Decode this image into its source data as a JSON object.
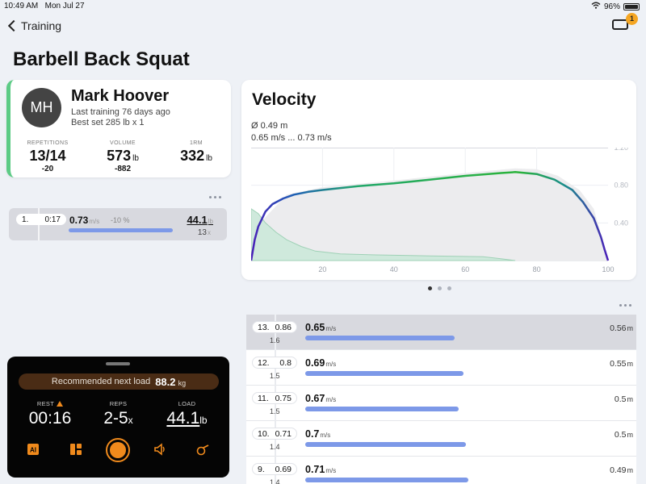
{
  "status": {
    "time": "10:49 AM",
    "date": "Mon Jul 27",
    "battery": "96%"
  },
  "nav": {
    "back_label": "Training",
    "badge_count": "1"
  },
  "page": {
    "title": "Barbell Back Squat"
  },
  "athlete": {
    "initials": "MH",
    "name": "Mark Hoover",
    "last_training": "Last training 76 days ago",
    "best_set": "Best set 285 lb x 1",
    "stats": [
      {
        "label": "REPETITIONS",
        "value": "13/14",
        "unit": "",
        "sub": "-20"
      },
      {
        "label": "VOLUME",
        "value": "573",
        "unit": "lb",
        "sub": "-882"
      },
      {
        "label": "1RM",
        "value": "332",
        "unit": "lb",
        "sub": ""
      }
    ]
  },
  "set": {
    "number": "1.",
    "time": "0:17",
    "velocity": "0.73",
    "velocity_unit": "m/s",
    "change": "-10 %",
    "load": "44.1",
    "load_unit": "lb",
    "reps": "13",
    "reps_unit": "x",
    "bar_fraction": 0.86
  },
  "velocity_card": {
    "title": "Velocity",
    "avg_distance": "Ø 0.49 m",
    "range": "0.65 m/s ... 0.73 m/s"
  },
  "chart_data": {
    "type": "line",
    "x_ticks": [
      "20",
      "40",
      "60",
      "80",
      "100"
    ],
    "y_ticks": [
      "1.20",
      "0.80",
      "0.40"
    ],
    "xlim": [
      0,
      100
    ],
    "ylim": [
      0,
      1.2
    ],
    "grid": true,
    "series": [
      {
        "kind": "velocity-line",
        "x": [
          0,
          1,
          2,
          4,
          6,
          9,
          12,
          16,
          20,
          30,
          40,
          50,
          60,
          70,
          74,
          80,
          85,
          90,
          93,
          96,
          98,
          99,
          100
        ],
        "y": [
          0,
          0.22,
          0.36,
          0.52,
          0.6,
          0.66,
          0.7,
          0.73,
          0.75,
          0.79,
          0.82,
          0.86,
          0.9,
          0.93,
          0.94,
          0.92,
          0.86,
          0.75,
          0.62,
          0.45,
          0.25,
          0.12,
          0
        ]
      },
      {
        "kind": "velocity-band-upper",
        "x": [
          0,
          10,
          20,
          40,
          60,
          74,
          80,
          86,
          92,
          96,
          100
        ],
        "y": [
          0.3,
          0.7,
          0.78,
          0.85,
          0.93,
          0.98,
          0.97,
          0.9,
          0.75,
          0.55,
          0
        ]
      },
      {
        "kind": "force-area",
        "x": [
          0,
          2,
          4,
          7,
          10,
          14,
          18,
          25,
          35,
          50,
          65,
          70,
          74
        ],
        "y": [
          0.55,
          0.5,
          0.4,
          0.3,
          0.22,
          0.15,
          0.1,
          0.07,
          0.06,
          0.05,
          0.04,
          0.02,
          0
        ]
      }
    ]
  },
  "reps": [
    {
      "number": "13.",
      "velocity": "0.86",
      "duration": "1.6",
      "rep_velocity": "0.65",
      "unit": "m/s",
      "distance": "0.56",
      "dist_unit": "m",
      "bar_fraction": 0.66,
      "selected": true
    },
    {
      "number": "12.",
      "velocity": "0.8",
      "duration": "1.5",
      "rep_velocity": "0.69",
      "unit": "m/s",
      "distance": "0.55",
      "dist_unit": "m",
      "bar_fraction": 0.7,
      "selected": false
    },
    {
      "number": "11.",
      "velocity": "0.75",
      "duration": "1.5",
      "rep_velocity": "0.67",
      "unit": "m/s",
      "distance": "0.5",
      "dist_unit": "m",
      "bar_fraction": 0.68,
      "selected": false
    },
    {
      "number": "10.",
      "velocity": "0.71",
      "duration": "1.4",
      "rep_velocity": "0.7",
      "unit": "m/s",
      "distance": "0.5",
      "dist_unit": "m",
      "bar_fraction": 0.71,
      "selected": false
    },
    {
      "number": "9.",
      "velocity": "0.69",
      "duration": "1.4",
      "rep_velocity": "0.71",
      "unit": "m/s",
      "distance": "0.49",
      "dist_unit": "m",
      "bar_fraction": 0.72,
      "selected": false
    }
  ],
  "control": {
    "recommended_label": "Recommended next load",
    "recommended_value": "88.2",
    "recommended_unit": "kg",
    "rest_label": "REST",
    "rest_value": "00:16",
    "reps_label": "REPS",
    "reps_value": "2-5",
    "reps_unit": "x",
    "load_label": "LOAD",
    "load_value": "44.1",
    "load_unit": "lb",
    "icons": [
      "ai-icon",
      "list-icon",
      "record-button",
      "volume-icon",
      "whistle-icon"
    ],
    "ai_text": "AI"
  },
  "colors": {
    "accent": "#f08a1c",
    "green": "#5ccb85",
    "bar": "#7d99e8"
  }
}
